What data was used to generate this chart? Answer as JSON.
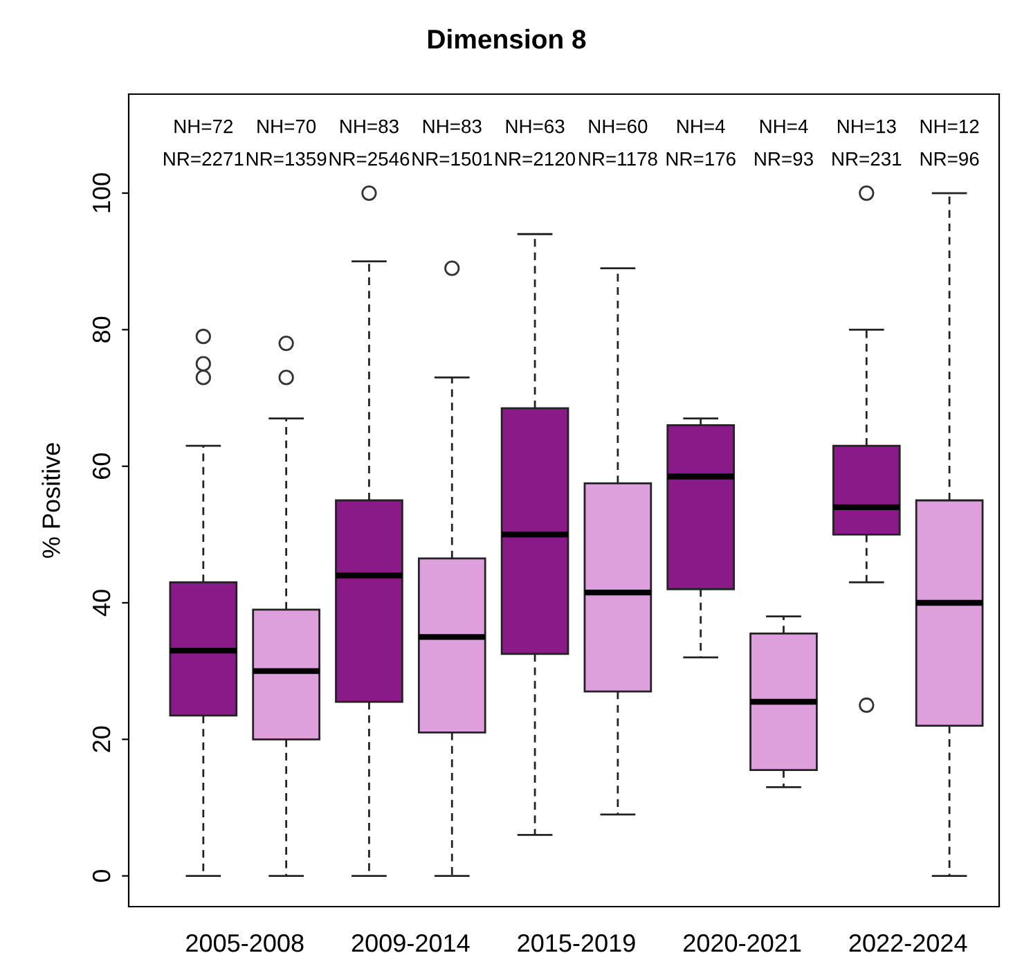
{
  "chart_data": {
    "type": "box",
    "title": "Dimension 8",
    "ylabel": "% Positive",
    "categories": [
      "2005-2008",
      "2009-2014",
      "2015-2019",
      "2020-2021",
      "2022-2024"
    ],
    "ylim": [
      -4.5,
      114.5
    ],
    "yticks": [
      0,
      20,
      40,
      60,
      80,
      100
    ],
    "grid": false,
    "legend": false,
    "series": [
      {
        "color": "#8b1a89",
        "boxes": [
          {
            "low": 0,
            "q1": 23.5,
            "median": 33,
            "q3": 43,
            "high": 63,
            "outliers": [
              73,
              75,
              79
            ]
          },
          {
            "low": 0,
            "q1": 25.5,
            "median": 44,
            "q3": 55,
            "high": 90,
            "outliers": [
              100
            ]
          },
          {
            "low": 6,
            "q1": 32.5,
            "median": 50,
            "q3": 68.5,
            "high": 94
          },
          {
            "low": 32,
            "q1": 42,
            "median": 58.5,
            "q3": 66,
            "high": 67
          },
          {
            "low": 43,
            "q1": 50,
            "median": 54,
            "q3": 63,
            "high": 80,
            "outliers": [
              25,
              100
            ]
          }
        ]
      },
      {
        "color": "#dda0dd",
        "boxes": [
          {
            "low": 0,
            "q1": 20,
            "median": 30,
            "q3": 39,
            "high": 67,
            "outliers": [
              73,
              78
            ]
          },
          {
            "low": 0,
            "q1": 21,
            "median": 35,
            "q3": 46.5,
            "high": 73,
            "outliers": [
              89
            ]
          },
          {
            "low": 9,
            "q1": 27,
            "median": 41.5,
            "q3": 57.5,
            "high": 89
          },
          {
            "low": 13,
            "q1": 15.5,
            "median": 25.5,
            "q3": 35.5,
            "high": 38
          },
          {
            "low": 0,
            "q1": 22,
            "median": 40,
            "q3": 55,
            "high": 100
          }
        ]
      }
    ],
    "annotations": [
      "NH=72",
      "NR=2271",
      "NH=70",
      "NR=1359",
      "NH=83",
      "NR=2546",
      "NH=83",
      "NR=1501",
      "NH=63",
      "NR=2120",
      "NH=60",
      "NR=1178",
      "NH=4",
      "NR=176",
      "NH=4",
      "NR=93",
      "NH=13",
      "NR=231",
      "NH=12",
      "NR=96"
    ]
  }
}
